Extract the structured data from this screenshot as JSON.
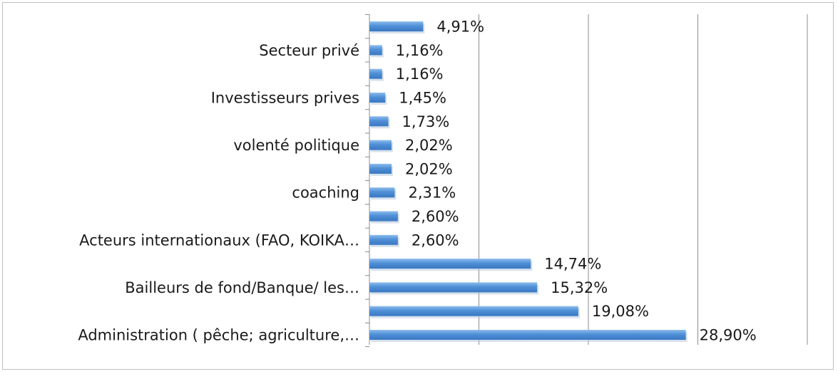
{
  "chart_data": {
    "type": "bar",
    "orientation": "horizontal",
    "categories": [
      "Administration ( pêche; agriculture,…",
      "",
      "Bailleurs de fond/Banque/ les…",
      "",
      "Acteurs internationaux (FAO, KOIKA…",
      "",
      "coaching",
      "",
      "volenté politique",
      "",
      "Investisseurs  prives",
      "",
      "Secteur privé",
      ""
    ],
    "values": [
      28.9,
      19.08,
      15.32,
      14.74,
      2.6,
      2.6,
      2.31,
      2.02,
      2.02,
      1.73,
      1.45,
      1.16,
      1.16,
      4.91
    ],
    "value_labels": [
      "28,90%",
      "19,08%",
      "15,32%",
      "14,74%",
      "2,60%",
      "2,60%",
      "2,31%",
      "2,02%",
      "2,02%",
      "1,73%",
      "1,45%",
      "1,16%",
      "1,16%",
      "4,91%"
    ],
    "xlim": [
      0,
      40
    ],
    "x_grid_step": 10,
    "grid": true,
    "bar_color": "#4f8fd6",
    "bar_highlight": "#86b6ea",
    "grid_color": "#8c8c8c"
  }
}
